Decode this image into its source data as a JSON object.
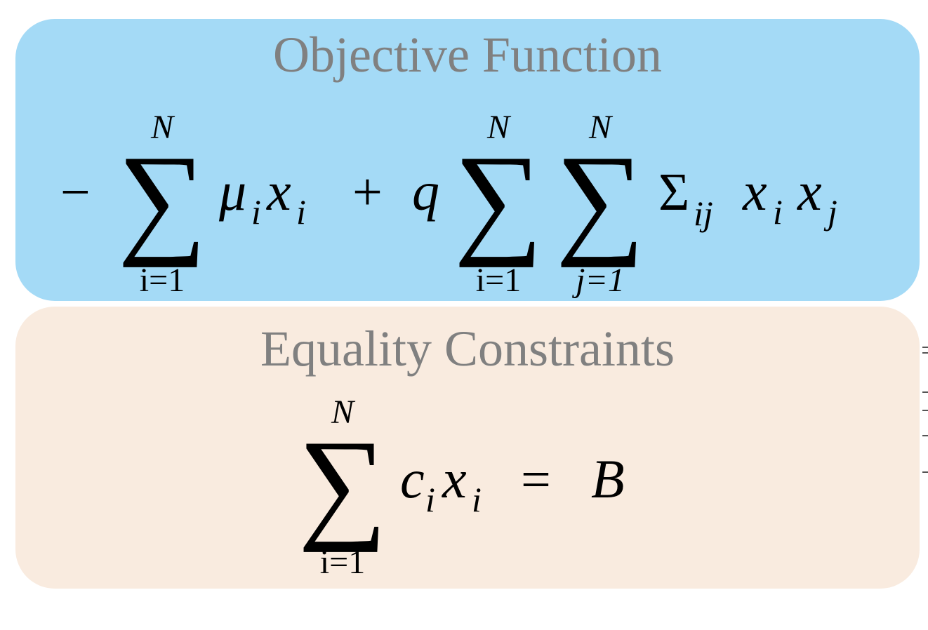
{
  "objective": {
    "title": "Objective Function",
    "formula": {
      "minus": "−",
      "sum1_upper": "N",
      "sum1_lower": "i=1",
      "sum_symbol": "∑",
      "term1_coef": "μ",
      "term1_coef_sub": "i",
      "term1_var": "x",
      "term1_var_sub": "i",
      "plus": "+",
      "q": "q",
      "sum2_upper": "N",
      "sum2_lower": "i=1",
      "sum3_upper": "N",
      "sum3_lower": "j=1",
      "cov": "Σ",
      "cov_sub": "ij",
      "var_i": "x",
      "var_i_sub": "i",
      "var_j": "x",
      "var_j_sub": "j"
    }
  },
  "constraint": {
    "title": "Equality Constraints",
    "formula": {
      "sum_upper": "N",
      "sum_lower": "i=1",
      "sum_symbol": "∑",
      "coef": "c",
      "coef_sub": "i",
      "var": "x",
      "var_sub": "i",
      "equals": "=",
      "rhs": "B"
    }
  },
  "colors": {
    "objective_panel": "#a4daf6",
    "constraint_panel": "#f9ebdf",
    "title_text": "#808080",
    "formula_text": "#000000"
  }
}
